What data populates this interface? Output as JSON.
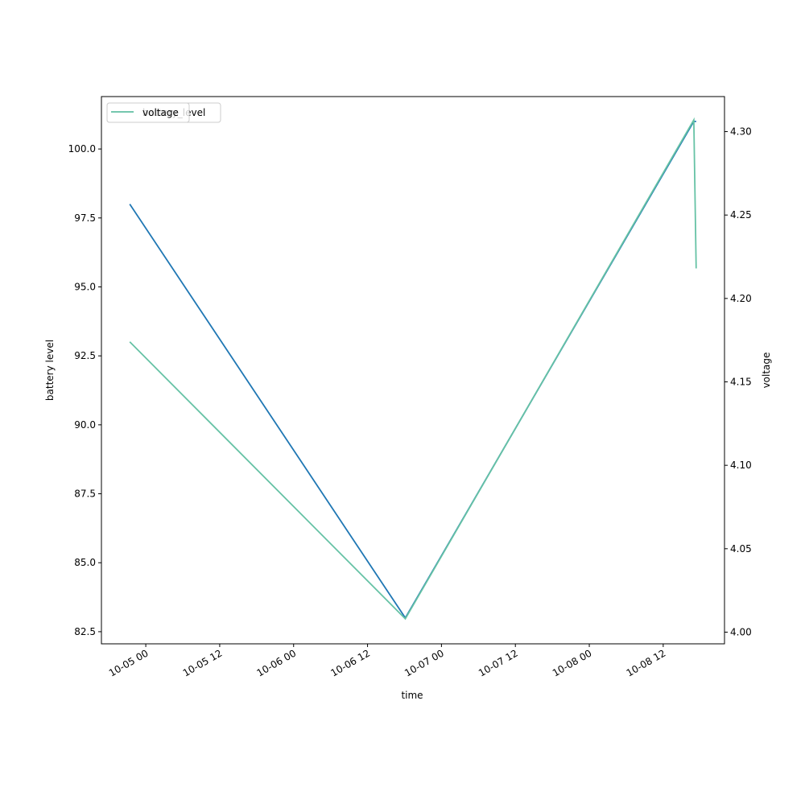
{
  "chart_data": {
    "type": "line",
    "x": [
      "10-04 21:24",
      "10-06 18:08",
      "10-08 16:58",
      "10-08 17:21"
    ],
    "xlabel": "time",
    "ylabel": "battery level",
    "y2label": "voltage",
    "xlim": [
      "10-04 16:48",
      "10-08 21:57"
    ],
    "xticks": [
      "10-05 00",
      "10-05 12",
      "10-06 00",
      "10-06 12",
      "10-07 00",
      "10-07 12",
      "10-08 00",
      "10-08 12"
    ],
    "ylim": [
      82.06,
      101.9
    ],
    "yticks": [
      82.5,
      {
        "value": 85,
        "label": "85.0"
      },
      87.5,
      {
        "value": 90,
        "label": "90.0"
      },
      92.5,
      {
        "value": 95,
        "label": "95.0"
      },
      97.5,
      {
        "value": 100,
        "label": "100.0"
      }
    ],
    "y2lim": [
      3.993,
      4.321
    ],
    "y2ticks": [
      {
        "value": 4,
        "label": "4.00"
      },
      4.05,
      {
        "value": 4.1,
        "label": "4.10"
      },
      4.15,
      {
        "value": 4.2,
        "label": "4.20"
      },
      4.25,
      {
        "value": 4.3,
        "label": "4.30"
      }
    ],
    "legend": "upper left",
    "series": [
      {
        "name": "battery_level",
        "color": "#1f77b4",
        "values": [
          98,
          83,
          101,
          101
        ]
      },
      {
        "name": "voltage",
        "color": "#66c2a5",
        "axis": "y2",
        "values": [
          4.174,
          4.008,
          4.307,
          4.218
        ]
      }
    ]
  }
}
